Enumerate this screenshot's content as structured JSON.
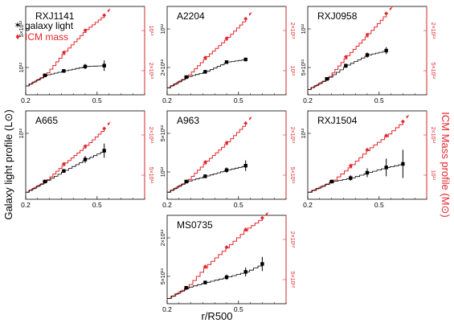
{
  "labels": {
    "y_left": "Galaxy light profile (L⊙)",
    "y_right": "ICM Mass profile (M⊙)",
    "x": "r/R500"
  },
  "legend": [
    {
      "label": "galaxy light",
      "symbol": "✶",
      "color": "#000000"
    },
    {
      "label": "ICM mass",
      "symbol": "♦",
      "color": "#e3262b"
    }
  ],
  "colors": {
    "light": "#000000",
    "icm": "#e3262b"
  },
  "chart_data": [
    {
      "type": "line",
      "title": "RXJ1141",
      "left_ticks": [
        "5×10¹²",
        "10¹²"
      ],
      "right_ticks": [
        "10¹³",
        "2×10¹³"
      ],
      "x_ticks": [
        "0.2",
        "0.5"
      ],
      "xlim": [
        0.2,
        0.7
      ],
      "ylim": [
        0,
        1
      ],
      "series": [
        {
          "name": "galaxy light",
          "color": "#000000",
          "x": [
            0.28,
            0.36,
            0.45,
            0.53
          ],
          "values": [
            0.22,
            0.27,
            0.32,
            0.33
          ],
          "err": [
            0.02,
            0.02,
            0.03,
            0.06
          ]
        },
        {
          "name": "ICM mass",
          "color": "#e3262b",
          "x": [
            0.28,
            0.36,
            0.45,
            0.53
          ],
          "values": [
            0.22,
            0.48,
            0.73,
            0.9
          ]
        }
      ]
    },
    {
      "type": "line",
      "title": "A2204",
      "left_ticks": [
        "10¹²",
        "2×10¹²"
      ],
      "right_ticks": [
        "2×10¹³",
        "10¹³"
      ],
      "x_ticks": [
        "0.2",
        "0.5"
      ],
      "xlim": [
        0.2,
        0.7
      ],
      "ylim": [
        0,
        1
      ],
      "series": [
        {
          "name": "galaxy light",
          "color": "#000000",
          "x": [
            0.28,
            0.36,
            0.45,
            0.53
          ],
          "values": [
            0.2,
            0.26,
            0.37,
            0.4
          ],
          "err": [
            0.02,
            0.02,
            0.02,
            0.02
          ]
        },
        {
          "name": "ICM mass",
          "color": "#e3262b",
          "x": [
            0.28,
            0.36,
            0.45,
            0.53
          ],
          "values": [
            0.2,
            0.42,
            0.64,
            0.86
          ]
        }
      ]
    },
    {
      "type": "line",
      "title": "RXJ0958",
      "left_ticks": [
        "10¹²",
        "5×10¹¹"
      ],
      "right_ticks": [
        "2×10¹³",
        "5×10¹²"
      ],
      "x_ticks": [
        "0.2",
        "0.5"
      ],
      "xlim": [
        0.2,
        0.7
      ],
      "ylim": [
        0,
        1
      ],
      "series": [
        {
          "name": "galaxy light",
          "color": "#000000",
          "x": [
            0.28,
            0.36,
            0.45,
            0.53
          ],
          "values": [
            0.18,
            0.33,
            0.45,
            0.5
          ],
          "err": [
            0.02,
            0.02,
            0.03,
            0.04
          ]
        },
        {
          "name": "ICM mass",
          "color": "#e3262b",
          "x": [
            0.28,
            0.36,
            0.45,
            0.53
          ],
          "values": [
            0.18,
            0.43,
            0.68,
            0.92
          ]
        }
      ]
    },
    {
      "type": "line",
      "title": "A665",
      "left_ticks": [
        "10¹²"
      ],
      "right_ticks": [
        "2×10¹³",
        "5×10¹²"
      ],
      "x_ticks": [
        "0.2",
        "0.5"
      ],
      "xlim": [
        0.2,
        0.7
      ],
      "ylim": [
        0,
        1
      ],
      "series": [
        {
          "name": "galaxy light",
          "color": "#000000",
          "x": [
            0.28,
            0.36,
            0.45,
            0.53
          ],
          "values": [
            0.2,
            0.32,
            0.45,
            0.55
          ],
          "err": [
            0.02,
            0.02,
            0.04,
            0.08
          ]
        },
        {
          "name": "ICM mass",
          "color": "#e3262b",
          "x": [
            0.28,
            0.36,
            0.45,
            0.53
          ],
          "values": [
            0.2,
            0.4,
            0.6,
            0.8
          ]
        }
      ]
    },
    {
      "type": "line",
      "title": "A963",
      "left_ticks": [
        "5×10¹²",
        "10¹²"
      ],
      "right_ticks": [
        "2×10¹³",
        "5×10¹²"
      ],
      "x_ticks": [
        "0.2",
        "0.5"
      ],
      "xlim": [
        0.2,
        0.7
      ],
      "ylim": [
        0,
        1
      ],
      "series": [
        {
          "name": "galaxy light",
          "color": "#000000",
          "x": [
            0.28,
            0.36,
            0.45,
            0.53
          ],
          "values": [
            0.2,
            0.26,
            0.33,
            0.38
          ],
          "err": [
            0.02,
            0.02,
            0.03,
            0.06
          ]
        },
        {
          "name": "ICM mass",
          "color": "#e3262b",
          "x": [
            0.28,
            0.36,
            0.45,
            0.53
          ],
          "values": [
            0.2,
            0.42,
            0.64,
            0.86
          ]
        }
      ]
    },
    {
      "type": "line",
      "title": "RXJ1504",
      "left_ticks": [
        "10¹²"
      ],
      "right_ticks": [
        "2×10¹³",
        "10¹³"
      ],
      "x_ticks": [
        "0.2",
        "0.5"
      ],
      "xlim": [
        0.2,
        0.7
      ],
      "ylim": [
        0,
        1
      ],
      "series": [
        {
          "name": "galaxy light",
          "color": "#000000",
          "x": [
            0.3,
            0.38,
            0.45,
            0.53,
            0.6
          ],
          "values": [
            0.2,
            0.24,
            0.3,
            0.36,
            0.4
          ],
          "err": [
            0.02,
            0.03,
            0.05,
            0.1,
            0.16
          ]
        },
        {
          "name": "ICM mass",
          "color": "#e3262b",
          "x": [
            0.3,
            0.38,
            0.45,
            0.53,
            0.6
          ],
          "values": [
            0.2,
            0.38,
            0.56,
            0.72,
            0.88
          ]
        }
      ]
    },
    {
      "type": "line",
      "title": "MS0735",
      "left_ticks": [
        "2×10¹²",
        "5×10¹¹"
      ],
      "right_ticks": [
        "2×10¹³",
        "5×10¹²"
      ],
      "x_ticks": [
        "0.2",
        "0.5"
      ],
      "xlim": [
        0.2,
        0.7
      ],
      "ylim": [
        0,
        1
      ],
      "series": [
        {
          "name": "galaxy light",
          "color": "#000000",
          "x": [
            0.28,
            0.36,
            0.45,
            0.53,
            0.6
          ],
          "values": [
            0.18,
            0.24,
            0.3,
            0.36,
            0.45
          ],
          "err": [
            0.02,
            0.02,
            0.03,
            0.05,
            0.08
          ]
        },
        {
          "name": "ICM mass",
          "color": "#e3262b",
          "x": [
            0.28,
            0.36,
            0.45,
            0.53,
            0.6
          ],
          "values": [
            0.18,
            0.42,
            0.64,
            0.84,
            0.97
          ]
        }
      ]
    }
  ]
}
